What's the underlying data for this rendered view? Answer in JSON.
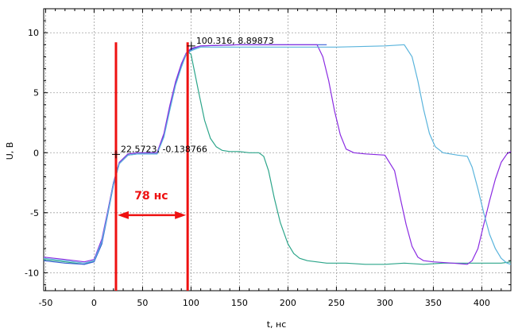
{
  "chart_data": {
    "type": "line",
    "xlabel": "t, нс",
    "ylabel": "U, В",
    "xlim": [
      -52,
      430
    ],
    "ylim": [
      -11.5,
      12
    ],
    "xticks": [
      -50,
      0,
      50,
      100,
      150,
      200,
      250,
      300,
      350,
      400
    ],
    "yticks": [
      -10,
      -5,
      0,
      5,
      10
    ],
    "grid": true,
    "series": [
      {
        "color": "#2ca58a",
        "x": [
          -52,
          -30,
          -10,
          0,
          8,
          14,
          20,
          26,
          35,
          45,
          55,
          65,
          72,
          78,
          84,
          90,
          94,
          97,
          100,
          103,
          108,
          114,
          120,
          126,
          132,
          140,
          150,
          160,
          170,
          175,
          180,
          186,
          192,
          200,
          206,
          212,
          220,
          240,
          260,
          280,
          300,
          320,
          340,
          360,
          380,
          400,
          420,
          430
        ],
        "y": [
          -8.9,
          -9.1,
          -9.3,
          -9.0,
          -7.5,
          -5.0,
          -2.5,
          -0.8,
          -0.1,
          0.0,
          0.0,
          0.0,
          1.5,
          3.8,
          5.8,
          7.2,
          8.0,
          8.4,
          8.2,
          7.0,
          5.0,
          2.7,
          1.2,
          0.5,
          0.2,
          0.1,
          0.1,
          0.0,
          0.0,
          -0.3,
          -1.5,
          -3.8,
          -5.8,
          -7.6,
          -8.4,
          -8.8,
          -9.0,
          -9.2,
          -9.2,
          -9.3,
          -9.3,
          -9.2,
          -9.3,
          -9.2,
          -9.2,
          -9.2,
          -9.2,
          -9.1
        ]
      },
      {
        "color": "#3a5fd6",
        "x": [
          -52,
          -30,
          -10,
          0,
          8,
          14,
          20,
          26,
          35,
          45,
          55,
          65,
          72,
          78,
          84,
          90,
          95,
          100,
          110,
          150,
          200,
          240
        ],
        "y": [
          -9.0,
          -9.2,
          -9.3,
          -9.1,
          -7.6,
          -5.2,
          -2.7,
          -0.9,
          -0.2,
          -0.1,
          -0.1,
          -0.1,
          1.4,
          3.6,
          5.7,
          7.2,
          8.2,
          8.6,
          8.9,
          9.0,
          9.0,
          9.0
        ]
      },
      {
        "color": "#8a2be2",
        "x": [
          -52,
          -30,
          -10,
          0,
          8,
          14,
          20,
          26,
          35,
          45,
          55,
          65,
          72,
          78,
          84,
          90,
          95,
          100,
          110,
          150,
          200,
          230,
          236,
          242,
          248,
          254,
          260,
          268,
          280,
          300,
          310,
          316,
          322,
          328,
          334,
          340,
          350,
          370,
          385,
          390,
          396,
          402,
          408,
          414,
          420,
          426,
          430
        ],
        "y": [
          -8.7,
          -8.9,
          -9.1,
          -8.9,
          -7.2,
          -4.9,
          -2.5,
          -0.8,
          -0.1,
          0.0,
          0.0,
          0.0,
          1.6,
          3.9,
          5.9,
          7.4,
          8.3,
          8.7,
          8.9,
          9.0,
          9.0,
          9.0,
          8.0,
          6.0,
          3.5,
          1.5,
          0.3,
          0.0,
          -0.1,
          -0.2,
          -1.5,
          -3.8,
          -6.0,
          -7.8,
          -8.7,
          -9.0,
          -9.1,
          -9.2,
          -9.3,
          -9.0,
          -8.0,
          -6.0,
          -4.0,
          -2.2,
          -0.8,
          -0.1,
          0.1
        ]
      },
      {
        "color": "#5ab4dc",
        "x": [
          -52,
          -30,
          -10,
          0,
          8,
          14,
          20,
          26,
          35,
          45,
          55,
          65,
          72,
          78,
          84,
          90,
          95,
          100,
          110,
          150,
          200,
          250,
          300,
          320,
          328,
          334,
          340,
          346,
          352,
          360,
          375,
          385,
          390,
          396,
          402,
          408,
          414,
          420,
          426,
          430
        ],
        "y": [
          -8.8,
          -9.0,
          -9.2,
          -9.0,
          -7.4,
          -5.1,
          -2.6,
          -0.9,
          -0.2,
          -0.1,
          -0.1,
          -0.1,
          1.3,
          3.5,
          5.6,
          7.1,
          8.2,
          8.5,
          8.8,
          8.8,
          8.8,
          8.8,
          8.9,
          9.0,
          8.0,
          6.0,
          3.6,
          1.6,
          0.5,
          0.0,
          -0.2,
          -0.3,
          -1.2,
          -3.0,
          -5.0,
          -6.8,
          -8.0,
          -8.8,
          -9.2,
          -9.3
        ]
      }
    ],
    "annotations": [
      {
        "x": 22.5723,
        "y": -0.138766,
        "text": "22.5723, -0.138766"
      },
      {
        "x": 100.316,
        "y": 8.89873,
        "text": "100.316,  8.89873"
      }
    ],
    "markers": {
      "color": "#ee1111",
      "vlines": [
        22.5723,
        96.5
      ],
      "arrow_y": -5.2,
      "label": "78 нс",
      "label_x": 59,
      "label_y": -3.9
    }
  }
}
